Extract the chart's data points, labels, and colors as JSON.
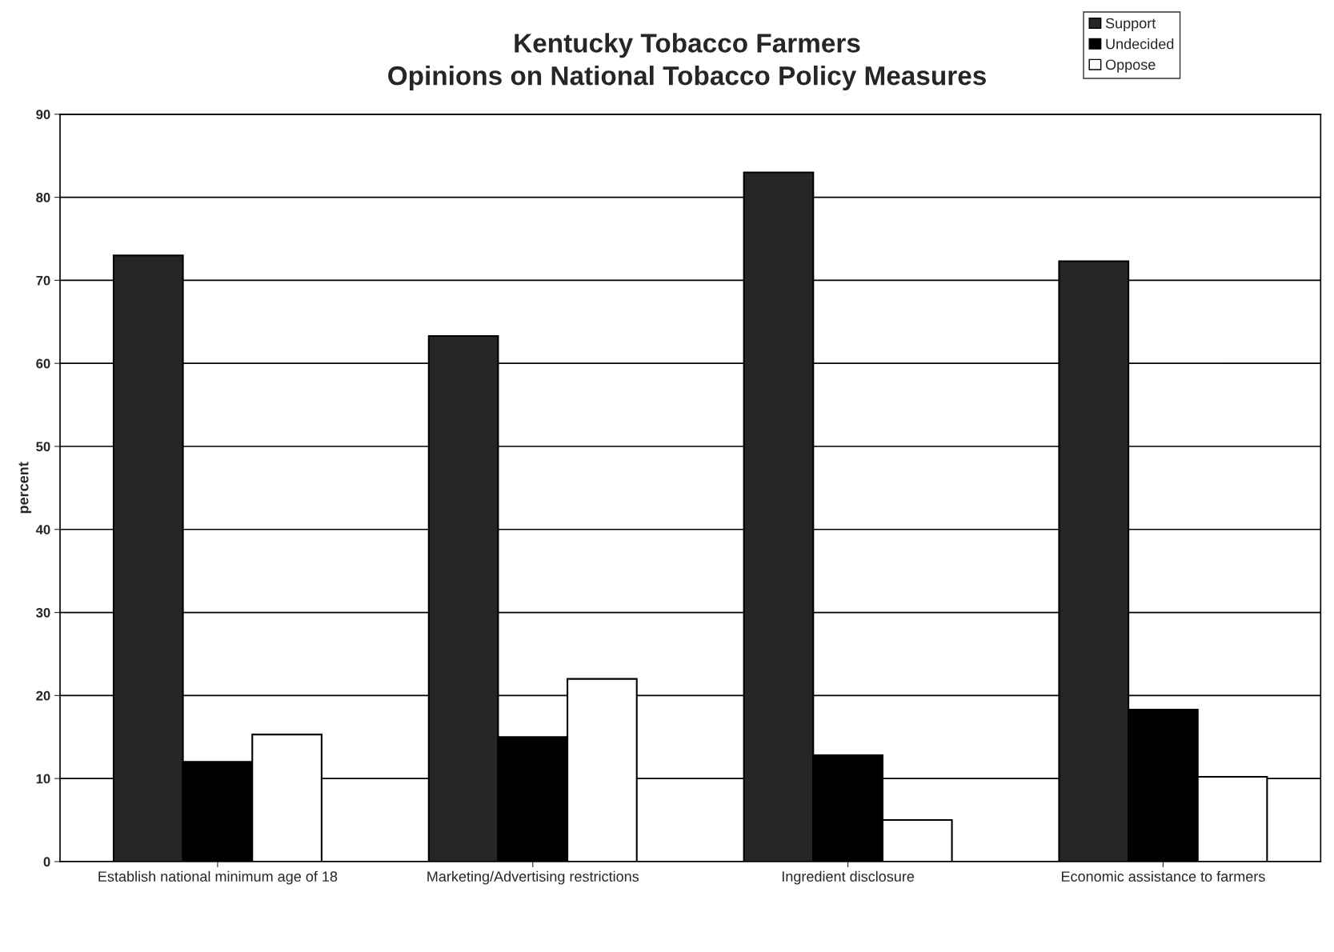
{
  "chart_data": {
    "type": "bar",
    "title": "Kentucky Tobacco Farmers\nOpinions on National Tobacco Policy Measures",
    "ylabel": "percent",
    "categories": [
      "Establish national minimum age of 18",
      "Marketing/Advertising restrictions",
      "Ingredient disclosure",
      "Economic assistance to farmers"
    ],
    "series": [
      {
        "name": "Support",
        "color": "#262626",
        "values": [
          73,
          63.3,
          83,
          72.3
        ]
      },
      {
        "name": "Undecided",
        "color": "#000000",
        "values": [
          12,
          15,
          12.8,
          18.3
        ]
      },
      {
        "name": "Oppose",
        "color": "#ffffff",
        "values": [
          15.3,
          22,
          5,
          10.2
        ]
      }
    ],
    "ylim": [
      0,
      90
    ],
    "yticks": [
      0,
      10,
      20,
      30,
      40,
      50,
      60,
      70,
      80,
      90
    ],
    "grid": "y",
    "legend": "top right"
  }
}
